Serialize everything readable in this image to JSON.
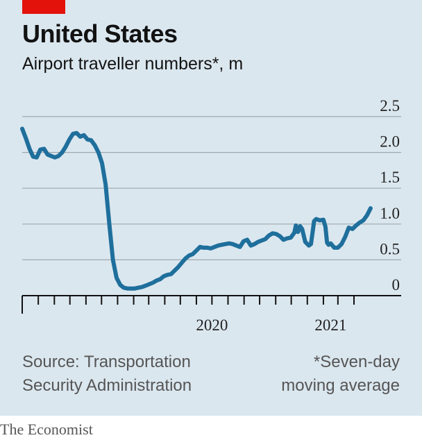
{
  "header": {
    "title": "United States",
    "subtitle": "Airport traveller numbers*, m"
  },
  "footer": {
    "source_line1": "Source: Transportation",
    "source_line2": "Security Administration",
    "note_line1": "*Seven-day",
    "note_line2": "moving average",
    "brand": "The Economist"
  },
  "colors": {
    "panel": "#dbe7ef",
    "line": "#1f6f9c",
    "accent_red": "#e3120b"
  },
  "chart_data": {
    "type": "line",
    "title": "United States",
    "subtitle": "Airport traveller numbers*, m",
    "ylim": [
      0,
      2.5
    ],
    "yticks": [
      {
        "value": 0,
        "label": "0"
      },
      {
        "value": 0.5,
        "label": "0.5"
      },
      {
        "value": 1.0,
        "label": "1.0"
      },
      {
        "value": 1.5,
        "label": "1.5"
      },
      {
        "value": 2.0,
        "label": "2.0"
      },
      {
        "value": 2.5,
        "label": "2.5"
      }
    ],
    "xrange": [
      "2019-07-01",
      "2021-04-15"
    ],
    "xticks": [
      "2019-07-01",
      "2019-08-01",
      "2019-09-01",
      "2019-10-01",
      "2019-11-01",
      "2019-12-01",
      "2020-01-01",
      "2020-02-01",
      "2020-03-01",
      "2020-04-01",
      "2020-05-01",
      "2020-06-01",
      "2020-07-01",
      "2020-08-01",
      "2020-09-01",
      "2020-10-01",
      "2020-11-01",
      "2020-12-01",
      "2021-01-01",
      "2021-02-01",
      "2021-03-01",
      "2021-04-01"
    ],
    "year_labels": [
      {
        "label": "2020",
        "x": "2020-07-01"
      },
      {
        "label": "2021",
        "x": "2021-02-15"
      }
    ],
    "grid": "horizontal",
    "series": [
      {
        "points": [
          [
            "2019-07-01",
            2.33
          ],
          [
            "2019-07-08",
            2.2
          ],
          [
            "2019-07-15",
            2.05
          ],
          [
            "2019-07-22",
            1.94
          ],
          [
            "2019-07-29",
            1.93
          ],
          [
            "2019-08-05",
            2.04
          ],
          [
            "2019-08-12",
            2.05
          ],
          [
            "2019-08-19",
            1.97
          ],
          [
            "2019-08-26",
            1.95
          ],
          [
            "2019-09-02",
            1.93
          ],
          [
            "2019-09-09",
            1.95
          ],
          [
            "2019-09-16",
            2.0
          ],
          [
            "2019-09-23",
            2.08
          ],
          [
            "2019-09-30",
            2.18
          ],
          [
            "2019-10-07",
            2.26
          ],
          [
            "2019-10-14",
            2.27
          ],
          [
            "2019-10-21",
            2.22
          ],
          [
            "2019-10-28",
            2.24
          ],
          [
            "2019-11-04",
            2.18
          ],
          [
            "2019-11-11",
            2.17
          ],
          [
            "2019-11-18",
            2.1
          ],
          [
            "2019-11-25",
            2.0
          ],
          [
            "2019-12-02",
            1.85
          ],
          [
            "2019-12-09",
            1.55
          ],
          [
            "2019-12-16",
            1.0
          ],
          [
            "2019-12-23",
            0.5
          ],
          [
            "2019-12-30",
            0.25
          ],
          [
            "2020-01-06",
            0.15
          ],
          [
            "2020-01-13",
            0.11
          ],
          [
            "2020-01-20",
            0.1
          ],
          [
            "2020-01-27",
            0.1
          ],
          [
            "2020-02-03",
            0.1
          ],
          [
            "2020-02-10",
            0.11
          ],
          [
            "2020-02-17",
            0.12
          ],
          [
            "2020-02-24",
            0.14
          ],
          [
            "2020-03-02",
            0.16
          ],
          [
            "2020-03-09",
            0.18
          ],
          [
            "2020-03-16",
            0.21
          ],
          [
            "2020-03-23",
            0.23
          ],
          [
            "2020-03-30",
            0.27
          ],
          [
            "2020-04-06",
            0.29
          ],
          [
            "2020-04-13",
            0.3
          ],
          [
            "2020-04-20",
            0.35
          ],
          [
            "2020-04-27",
            0.4
          ],
          [
            "2020-05-04",
            0.46
          ],
          [
            "2020-05-11",
            0.52
          ],
          [
            "2020-05-18",
            0.56
          ],
          [
            "2020-05-25",
            0.58
          ],
          [
            "2020-06-01",
            0.63
          ],
          [
            "2020-06-08",
            0.68
          ],
          [
            "2020-06-15",
            0.67
          ],
          [
            "2020-06-22",
            0.67
          ],
          [
            "2020-06-29",
            0.66
          ],
          [
            "2020-07-06",
            0.68
          ],
          [
            "2020-07-13",
            0.7
          ],
          [
            "2020-07-20",
            0.71
          ],
          [
            "2020-07-27",
            0.72
          ],
          [
            "2020-08-03",
            0.73
          ],
          [
            "2020-08-10",
            0.72
          ],
          [
            "2020-08-17",
            0.7
          ],
          [
            "2020-08-24",
            0.68
          ],
          [
            "2020-08-31",
            0.76
          ],
          [
            "2020-09-07",
            0.78
          ],
          [
            "2020-09-14",
            0.7
          ],
          [
            "2020-09-21",
            0.72
          ],
          [
            "2020-09-28",
            0.75
          ],
          [
            "2020-10-05",
            0.77
          ],
          [
            "2020-10-12",
            0.79
          ],
          [
            "2020-10-19",
            0.84
          ],
          [
            "2020-10-26",
            0.87
          ],
          [
            "2020-11-02",
            0.86
          ],
          [
            "2020-11-09",
            0.83
          ],
          [
            "2020-11-16",
            0.78
          ],
          [
            "2020-11-23",
            0.8
          ],
          [
            "2020-11-30",
            0.81
          ],
          [
            "2020-12-07",
            0.88
          ],
          [
            "2020-12-10",
            0.98
          ],
          [
            "2020-12-14",
            0.89
          ],
          [
            "2020-12-18",
            0.97
          ],
          [
            "2020-12-22",
            0.93
          ],
          [
            "2020-12-28",
            0.75
          ],
          [
            "2021-01-04",
            0.7
          ],
          [
            "2021-01-08",
            0.72
          ],
          [
            "2021-01-11",
            0.88
          ],
          [
            "2021-01-14",
            1.04
          ],
          [
            "2021-01-18",
            1.07
          ],
          [
            "2021-01-25",
            1.05
          ],
          [
            "2021-02-01",
            1.06
          ],
          [
            "2021-02-05",
            0.96
          ],
          [
            "2021-02-08",
            0.74
          ],
          [
            "2021-02-11",
            0.71
          ],
          [
            "2021-02-15",
            0.73
          ],
          [
            "2021-02-22",
            0.67
          ],
          [
            "2021-03-01",
            0.67
          ],
          [
            "2021-03-08",
            0.72
          ],
          [
            "2021-03-15",
            0.82
          ],
          [
            "2021-03-22",
            0.95
          ],
          [
            "2021-03-29",
            0.93
          ],
          [
            "2021-04-05",
            0.98
          ],
          [
            "2021-04-12",
            1.02
          ],
          [
            "2021-04-19",
            1.05
          ],
          [
            "2021-04-26",
            1.12
          ],
          [
            "2021-05-03",
            1.22
          ]
        ]
      }
    ]
  }
}
